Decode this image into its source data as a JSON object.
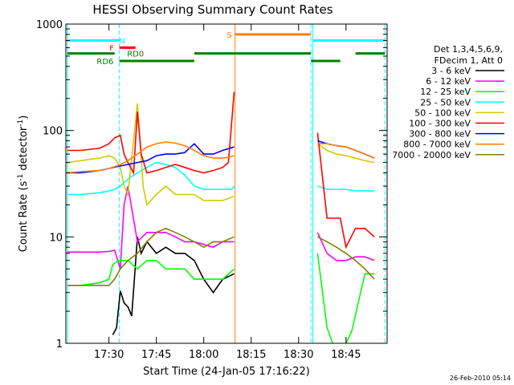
{
  "chart_data": {
    "type": "line",
    "title": "HESSI Observing Summary Count Rates",
    "xlabel": "Start Time (24-Jan-05 17:16:22)",
    "ylabel_main": "Count Rate (s",
    "ylabel_sup1": "-1",
    "ylabel_mid": " detector",
    "ylabel_sup2": "-1",
    "ylabel_end": ")",
    "footer": "26-Feb-2010 05:14",
    "yscale": "log",
    "ylim": [
      1,
      1000
    ],
    "xlim": [
      17.2728,
      18.9667
    ],
    "y_ticks": [
      {
        "value": 1,
        "label": "1"
      },
      {
        "value": 10,
        "label": "10"
      },
      {
        "value": 100,
        "label": "100"
      },
      {
        "value": 1000,
        "label": "1000"
      }
    ],
    "x_ticks": [
      {
        "value": 17.5,
        "label": "17:30"
      },
      {
        "value": 17.75,
        "label": "17:45"
      },
      {
        "value": 18.0,
        "label": "18:00"
      },
      {
        "value": 18.25,
        "label": "18:15"
      },
      {
        "value": 18.5,
        "label": "18:30"
      },
      {
        "value": 18.75,
        "label": "18:45"
      }
    ],
    "legend_header": [
      "Det 1,3,4,5,6,9,",
      "FDecim 1, Att 0"
    ],
    "legend_placement": "right",
    "series": [
      {
        "name": "3 - 6 keV",
        "color": "#000000",
        "points": [
          [
            17.52,
            1.2
          ],
          [
            17.54,
            1.4
          ],
          [
            17.56,
            3.1
          ],
          [
            17.58,
            2.4
          ],
          [
            17.6,
            2.2
          ],
          [
            17.62,
            1.8
          ],
          [
            17.65,
            10
          ],
          [
            17.67,
            7
          ],
          [
            17.7,
            9
          ],
          [
            17.75,
            7
          ],
          [
            17.8,
            8
          ],
          [
            17.85,
            7
          ],
          [
            17.9,
            7
          ],
          [
            17.95,
            6
          ],
          [
            18.0,
            4
          ],
          [
            18.05,
            3
          ],
          [
            18.1,
            4
          ],
          [
            18.16,
            4.5
          ]
        ]
      },
      {
        "name": "6 - 12 keV",
        "color": "#ff00ff",
        "points": [
          [
            17.28,
            7.2
          ],
          [
            17.35,
            7.2
          ],
          [
            17.45,
            7.2
          ],
          [
            17.5,
            7.3
          ],
          [
            17.53,
            7.5
          ],
          [
            17.56,
            5
          ],
          [
            17.58,
            20
          ],
          [
            17.6,
            30
          ],
          [
            17.65,
            9
          ],
          [
            17.7,
            11
          ],
          [
            17.75,
            11
          ],
          [
            17.8,
            11
          ],
          [
            17.85,
            10
          ],
          [
            17.9,
            9
          ],
          [
            17.95,
            9
          ],
          [
            18.0,
            8.5
          ],
          [
            18.05,
            8
          ],
          [
            18.1,
            9
          ],
          [
            18.16,
            9
          ],
          null,
          [
            18.6,
            11
          ],
          [
            18.65,
            7
          ],
          [
            18.7,
            6
          ],
          [
            18.75,
            6
          ],
          [
            18.8,
            6.5
          ],
          [
            18.85,
            6.5
          ],
          [
            18.9,
            6
          ]
        ]
      },
      {
        "name": "12 - 25 keV",
        "color": "#00ff00",
        "points": [
          [
            17.28,
            3.5
          ],
          [
            17.35,
            3.5
          ],
          [
            17.45,
            3.7
          ],
          [
            17.5,
            4
          ],
          [
            17.52,
            5.5
          ],
          [
            17.55,
            6
          ],
          [
            17.6,
            6
          ],
          [
            17.65,
            5
          ],
          [
            17.7,
            6
          ],
          [
            17.75,
            6
          ],
          [
            17.8,
            5
          ],
          [
            17.85,
            5
          ],
          [
            17.9,
            5
          ],
          [
            17.95,
            4
          ],
          [
            18.0,
            4
          ],
          [
            18.05,
            4
          ],
          [
            18.1,
            4
          ],
          [
            18.16,
            5
          ],
          null,
          [
            18.6,
            7
          ],
          [
            18.65,
            1.4
          ],
          [
            18.68,
            1
          ],
          null,
          [
            18.75,
            1
          ],
          [
            18.78,
            1.3
          ],
          [
            18.85,
            4.5
          ],
          [
            18.9,
            4.5
          ]
        ]
      },
      {
        "name": "25 - 50 keV",
        "color": "#00ffff",
        "points": [
          [
            17.28,
            25
          ],
          [
            17.35,
            25
          ],
          [
            17.45,
            26
          ],
          [
            17.5,
            27
          ],
          [
            17.53,
            28
          ],
          [
            17.56,
            30
          ],
          [
            17.6,
            35
          ],
          [
            17.65,
            40
          ],
          [
            17.7,
            45
          ],
          [
            17.75,
            50
          ],
          [
            17.8,
            48
          ],
          [
            17.85,
            45
          ],
          [
            17.9,
            38
          ],
          [
            17.95,
            30
          ],
          [
            18.0,
            28
          ],
          [
            18.05,
            28
          ],
          [
            18.1,
            28
          ],
          [
            18.15,
            28
          ],
          [
            18.16,
            30
          ],
          null,
          [
            18.6,
            30
          ],
          [
            18.65,
            28
          ],
          [
            18.7,
            28
          ],
          [
            18.75,
            28
          ],
          [
            18.8,
            27
          ],
          [
            18.85,
            27
          ],
          [
            18.9,
            27
          ]
        ]
      },
      {
        "name": "50 - 100 keV",
        "color": "#cccc00",
        "points": [
          [
            17.28,
            50
          ],
          [
            17.35,
            52
          ],
          [
            17.45,
            55
          ],
          [
            17.5,
            58
          ],
          [
            17.53,
            55
          ],
          [
            17.56,
            45
          ],
          [
            17.58,
            30
          ],
          [
            17.6,
            25
          ],
          [
            17.65,
            180
          ],
          [
            17.68,
            30
          ],
          [
            17.7,
            20
          ],
          [
            17.75,
            25
          ],
          [
            17.8,
            30
          ],
          [
            17.85,
            25
          ],
          [
            17.9,
            25
          ],
          [
            17.95,
            25
          ],
          [
            18.0,
            22
          ],
          [
            18.05,
            22
          ],
          [
            18.1,
            22
          ],
          [
            18.16,
            24
          ],
          null,
          [
            18.6,
            75
          ],
          [
            18.65,
            65
          ],
          [
            18.7,
            60
          ],
          [
            18.75,
            58
          ],
          [
            18.8,
            55
          ],
          [
            18.85,
            52
          ],
          [
            18.9,
            50
          ]
        ]
      },
      {
        "name": "100 - 300 keV",
        "color": "#ff0000",
        "points": [
          [
            17.28,
            65
          ],
          [
            17.35,
            65
          ],
          [
            17.45,
            68
          ],
          [
            17.5,
            75
          ],
          [
            17.53,
            85
          ],
          [
            17.56,
            90
          ],
          [
            17.58,
            60
          ],
          [
            17.6,
            50
          ],
          [
            17.63,
            40
          ],
          [
            17.65,
            150
          ],
          [
            17.67,
            60
          ],
          [
            17.7,
            40
          ],
          [
            17.75,
            42
          ],
          [
            17.8,
            45
          ],
          [
            17.85,
            48
          ],
          [
            17.9,
            45
          ],
          [
            17.95,
            42
          ],
          [
            18.0,
            40
          ],
          [
            18.05,
            42
          ],
          [
            18.1,
            45
          ],
          [
            18.13,
            50
          ],
          [
            18.16,
            230
          ],
          null,
          [
            18.6,
            95
          ],
          [
            18.65,
            15
          ],
          [
            18.7,
            15
          ],
          [
            18.72,
            15
          ],
          [
            18.75,
            8
          ],
          [
            18.8,
            12
          ],
          [
            18.85,
            12
          ],
          [
            18.9,
            10
          ]
        ]
      },
      {
        "name": "300 - 800 keV",
        "color": "#0000ff",
        "points": [
          [
            17.28,
            40
          ],
          [
            17.35,
            40
          ],
          [
            17.45,
            42
          ],
          [
            17.5,
            44
          ],
          [
            17.55,
            46
          ],
          [
            17.6,
            48
          ],
          [
            17.65,
            50
          ],
          [
            17.7,
            52
          ],
          [
            17.75,
            58
          ],
          [
            17.8,
            60
          ],
          [
            17.85,
            60
          ],
          [
            17.9,
            62
          ],
          [
            17.95,
            75
          ],
          [
            18.0,
            60
          ],
          [
            18.05,
            60
          ],
          [
            18.1,
            65
          ],
          [
            18.16,
            70
          ],
          null,
          [
            18.6,
            80
          ],
          [
            18.65,
            75
          ],
          [
            18.7,
            72
          ],
          [
            18.75,
            70
          ],
          [
            18.8,
            65
          ],
          [
            18.85,
            60
          ],
          [
            18.9,
            55
          ]
        ]
      },
      {
        "name": "800 - 7000 keV",
        "color": "#ff8000",
        "points": [
          [
            17.28,
            40
          ],
          [
            17.35,
            41
          ],
          [
            17.45,
            42
          ],
          [
            17.5,
            44
          ],
          [
            17.55,
            47
          ],
          [
            17.6,
            52
          ],
          [
            17.65,
            60
          ],
          [
            17.7,
            70
          ],
          [
            17.75,
            75
          ],
          [
            17.8,
            78
          ],
          [
            17.85,
            76
          ],
          [
            17.9,
            72
          ],
          [
            17.95,
            65
          ],
          [
            18.0,
            58
          ],
          [
            18.05,
            55
          ],
          [
            18.1,
            55
          ],
          [
            18.13,
            56
          ],
          [
            18.16,
            58
          ],
          null,
          [
            18.6,
            75
          ],
          [
            18.65,
            75
          ],
          [
            18.7,
            72
          ],
          [
            18.75,
            70
          ],
          [
            18.8,
            65
          ],
          [
            18.85,
            60
          ],
          [
            18.9,
            55
          ]
        ]
      },
      {
        "name": "7000 - 20000 keV",
        "color": "#808000",
        "points": [
          [
            17.28,
            3.5
          ],
          [
            17.35,
            3.5
          ],
          [
            17.45,
            3.5
          ],
          [
            17.5,
            3.5
          ],
          [
            17.53,
            4
          ],
          [
            17.56,
            5
          ],
          [
            17.6,
            6
          ],
          [
            17.65,
            7
          ],
          [
            17.7,
            9
          ],
          [
            17.75,
            11
          ],
          [
            17.8,
            12
          ],
          [
            17.85,
            11
          ],
          [
            17.9,
            10
          ],
          [
            17.95,
            9
          ],
          [
            18.0,
            8
          ],
          [
            18.05,
            9
          ],
          [
            18.1,
            9
          ],
          [
            18.16,
            10
          ],
          null,
          [
            18.6,
            10
          ],
          [
            18.65,
            9
          ],
          [
            18.7,
            8
          ],
          [
            18.75,
            7
          ],
          [
            18.8,
            6
          ],
          [
            18.85,
            5
          ],
          [
            18.9,
            4
          ]
        ]
      }
    ],
    "vertical_markers": [
      {
        "x": 17.282,
        "color": "#00ffff",
        "style": "solid"
      },
      {
        "x": 17.555,
        "color": "#00ffff",
        "style": "dashed"
      },
      {
        "x": 18.165,
        "color": "#ff8000",
        "style": "solid"
      },
      {
        "x": 18.565,
        "color": "#00ffff",
        "style": "dashed"
      },
      {
        "x": 18.575,
        "color": "#00ffff",
        "style": "solid"
      },
      {
        "x": 18.955,
        "color": "#00ffff",
        "style": "dashed"
      }
    ],
    "flag_bars": [
      {
        "label": "N",
        "color": "#00ffff",
        "level": 700,
        "segments": [
          [
            17.28,
            17.555
          ],
          [
            18.575,
            18.955
          ]
        ],
        "label_x": 17.57
      },
      {
        "label": "F",
        "color": "#ff0000",
        "level": 600,
        "segments": [
          [
            17.555,
            17.64
          ]
        ],
        "label_x": 17.515
      },
      {
        "label": "RD0",
        "color": "#008000",
        "level": 530,
        "segments": [
          [
            17.28,
            17.53
          ]
        ],
        "label_x": 17.64
      },
      {
        "label": "RD6",
        "color": "#008000",
        "level": 450,
        "segments": [
          [
            17.555,
            17.95
          ]
        ],
        "label_x": 17.48
      },
      {
        "label": "",
        "color": "#008000",
        "level": 530,
        "segments": [
          [
            17.95,
            18.565
          ],
          [
            18.8,
            18.955
          ]
        ],
        "label_x": null
      },
      {
        "label": "",
        "color": "#008000",
        "level": 450,
        "segments": [
          [
            18.565,
            18.72
          ]
        ],
        "label_x": null
      },
      {
        "label": "S",
        "color": "#ff8000",
        "level": 800,
        "segments": [
          [
            18.165,
            18.565
          ]
        ],
        "label_x": 18.135
      }
    ]
  }
}
